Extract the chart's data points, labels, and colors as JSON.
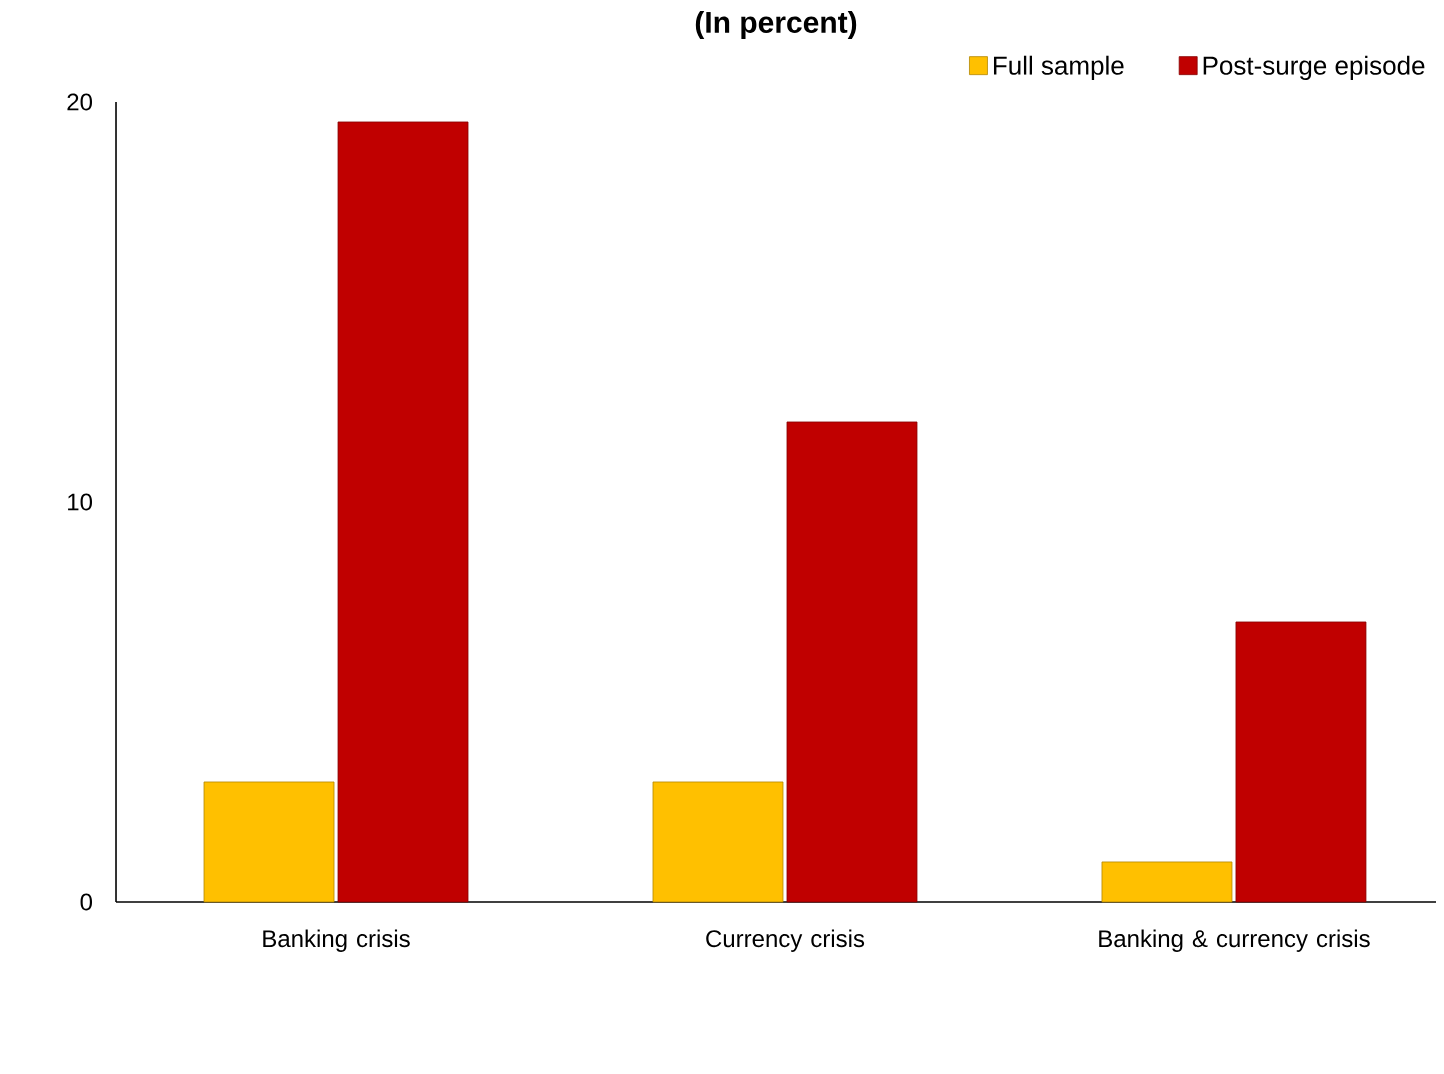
{
  "chart_data": {
    "type": "bar",
    "title": "(In percent)",
    "categories": [
      "Banking crisis",
      "Currency crisis",
      "Banking & currency crisis"
    ],
    "series": [
      {
        "name": "Full sample",
        "color": "#ffc000",
        "values": [
          3,
          3,
          1
        ]
      },
      {
        "name": "Post-surge episode",
        "color": "#c00000",
        "values": [
          19.5,
          12,
          7
        ]
      }
    ],
    "ylim": [
      0,
      20
    ],
    "yticks": [
      0,
      10,
      20
    ],
    "legend": "top right",
    "grid": false
  }
}
